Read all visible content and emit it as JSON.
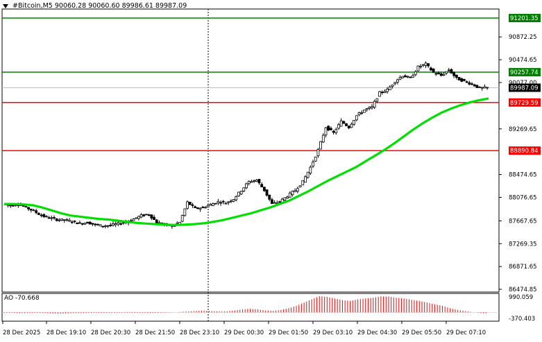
{
  "header": {
    "symbol": "#Bitcoin,M5",
    "ohlc": "90060.28 90060.60 89986.61 89987.09"
  },
  "indicator": {
    "label": "AO -70.668",
    "scale_top": "990.059",
    "scale_bottom": "-370.403"
  },
  "colors": {
    "resistance": "#008000",
    "support": "#ff0000",
    "ma": "#00e000",
    "candle": "#000000",
    "ao_up": "#ff0000",
    "ao_down": "#ff0000",
    "grid": "#c8c8c8",
    "price_tag_bg": "#000000"
  },
  "chart_data": {
    "type": "candlestick",
    "y_axis_ticks": [
      "91201.35",
      "90872.25",
      "90474.65",
      "90077.00",
      "89729.59",
      "89269.65",
      "88474.65",
      "88076.65",
      "87667.65",
      "87269.35",
      "86871.65",
      "86474.85"
    ],
    "y_axis_ticks_visible": [
      "90872.25",
      "90474.65",
      "90077.00",
      "89269.65",
      "88474.65",
      "88076.65",
      "87667.65",
      "87269.35",
      "86871.65",
      "86474.85"
    ],
    "ylim": [
      86474.85,
      91201.35
    ],
    "x_axis_ticks": [
      "28 Dec 2025",
      "28 Dec 19:10",
      "28 Dec 20:30",
      "28 Dec 21:50",
      "28 Dec 23:10",
      "29 Dec 00:30",
      "29 Dec 01:50",
      "29 Dec 03:10",
      "29 Dec 04:30",
      "29 Dec 05:50",
      "29 Dec 07:10"
    ],
    "levels": [
      {
        "label": "91201.35",
        "value": 91201.35,
        "kind": "resistance"
      },
      {
        "label": "90257.74",
        "value": 90257.74,
        "kind": "resistance"
      },
      {
        "label": "89729.59",
        "value": 89729.59,
        "kind": "support"
      },
      {
        "label": "88890.84",
        "value": 88890.84,
        "kind": "support"
      }
    ],
    "current_price": {
      "label": "89987.09",
      "value": 89987.09
    },
    "close_path": [
      87960,
      87930,
      87960,
      87900,
      87840,
      87760,
      87720,
      87690,
      87680,
      87660,
      87620,
      87640,
      87600,
      87580,
      87590,
      87620,
      87650,
      87700,
      87760,
      87780,
      87640,
      87600,
      87580,
      87640,
      87990,
      87880,
      87900,
      87950,
      88000,
      87980,
      88050,
      88200,
      88350,
      88380,
      88200,
      87960,
      88000,
      88100,
      88200,
      88350,
      88600,
      88900,
      89300,
      89200,
      89400,
      89300,
      89500,
      89600,
      89650,
      89900,
      89950,
      90100,
      90200,
      90150,
      90350,
      90400,
      90250,
      90200,
      90300,
      90150,
      90100,
      90050,
      89980,
      89987
    ],
    "moving_average": [
      87960,
      87960,
      87955,
      87940,
      87900,
      87850,
      87800,
      87760,
      87740,
      87720,
      87700,
      87690,
      87670,
      87650,
      87630,
      87620,
      87610,
      87600,
      87595,
      87600,
      87610,
      87625,
      87650,
      87680,
      87720,
      87760,
      87800,
      87850,
      87900,
      87960,
      88020,
      88100,
      88180,
      88270,
      88360,
      88440,
      88520,
      88600,
      88700,
      88800,
      88900,
      89010,
      89130,
      89250,
      89360,
      89460,
      89550,
      89620,
      89680,
      89730,
      89770,
      89800
    ],
    "ao_values": [
      -40,
      -30,
      -50,
      -45,
      -35,
      -40,
      -60,
      -80,
      -70,
      -50,
      -40,
      -30,
      -35,
      -40,
      -30,
      -20,
      -25,
      -30,
      -40,
      -35,
      -30,
      -20,
      -10,
      30,
      60,
      90,
      110,
      80,
      60,
      70,
      120,
      180,
      220,
      180,
      120,
      100,
      150,
      250,
      400,
      600,
      800,
      990,
      950,
      850,
      750,
      700,
      800,
      850,
      900,
      980,
      970,
      900,
      850,
      780,
      700,
      600,
      500,
      400,
      250,
      150,
      80,
      10,
      -40,
      -70
    ]
  }
}
